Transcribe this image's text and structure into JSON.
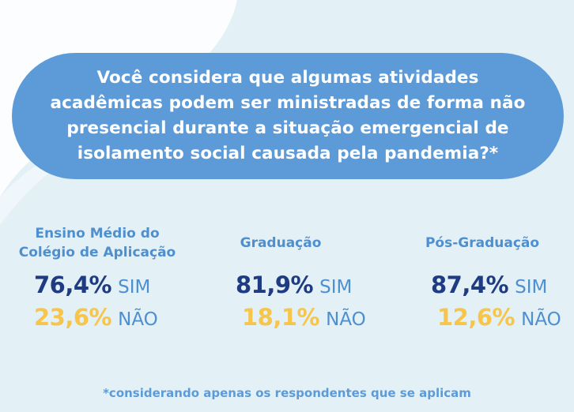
{
  "question": "Você considera que algumas atividades acadêmicas podem ser ministradas de forma não presencial durante a situação emergencial de isolamento social causada pela pandemia?*",
  "question_lines": [
    "Você considera que algumas atividades",
    "acadêmicas podem ser ministradas de forma não",
    "presencial durante a situação emergencial de",
    "isolamento social causada pela pandemia?*"
  ],
  "groups": [
    {
      "title_lines": [
        "Ensino Médio do",
        "Colégio de Aplicação"
      ],
      "yes_pct": "76,4%",
      "yes_label": "SIM",
      "no_pct": "23,6%",
      "no_label": "NÃO"
    },
    {
      "title_lines": [
        "Graduação"
      ],
      "yes_pct": "81,9%",
      "yes_label": "SIM",
      "no_pct": "18,1%",
      "no_label": "NÃO"
    },
    {
      "title_lines": [
        "Pós-Graduação"
      ],
      "yes_pct": "87,4%",
      "yes_label": "SIM",
      "no_pct": "12,6%",
      "no_label": "NÃO"
    }
  ],
  "footnote": "*considerando apenas os respondentes que se aplicam",
  "colors": {
    "background": "#e3f0f6",
    "pill": "#5d9bd8",
    "title": "#4e8fcf",
    "yes_value": "#1f3b82",
    "no_value": "#f6c54a"
  }
}
